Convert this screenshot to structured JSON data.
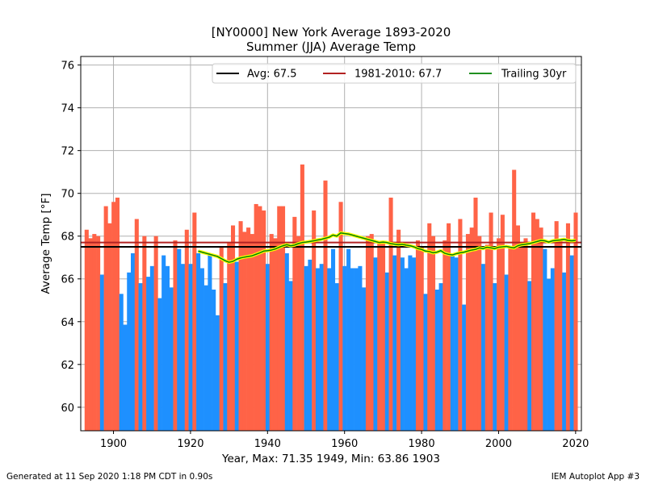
{
  "chart_data": {
    "type": "bar",
    "title": "[NY0000] New York Average 1893-2020",
    "subtitle": "Summer (JJA) Average Temp",
    "xlabel": "Year, Max: 71.35 1949, Min: 63.86 1903",
    "ylabel": "Average Temp [°F]",
    "xlim": [
      1891.5,
      2021.5
    ],
    "ylim": [
      58.9,
      76.4
    ],
    "xticks": [
      1900,
      1920,
      1940,
      1960,
      1980,
      2000,
      2020
    ],
    "yticks": [
      60,
      62,
      64,
      66,
      68,
      70,
      72,
      74,
      76
    ],
    "grid": true,
    "legend_position": "top-right",
    "above_color": "#ff6347",
    "below_color": "#1e90ff",
    "average": {
      "label": "Avg: 67.5",
      "value": 67.5,
      "color": "#000000"
    },
    "normal": {
      "label": "1981-2010: 67.7",
      "value": 67.7,
      "color": "#b22222"
    },
    "trailing": {
      "label": "Trailing 30yr",
      "color": "#008000",
      "halo": "#ffff00"
    },
    "years": [
      1893,
      1894,
      1895,
      1896,
      1897,
      1898,
      1899,
      1900,
      1901,
      1902,
      1903,
      1904,
      1905,
      1906,
      1907,
      1908,
      1909,
      1910,
      1911,
      1912,
      1913,
      1914,
      1915,
      1916,
      1917,
      1918,
      1919,
      1920,
      1921,
      1922,
      1923,
      1924,
      1925,
      1926,
      1927,
      1928,
      1929,
      1930,
      1931,
      1932,
      1933,
      1934,
      1935,
      1936,
      1937,
      1938,
      1939,
      1940,
      1941,
      1942,
      1943,
      1944,
      1945,
      1946,
      1947,
      1948,
      1949,
      1950,
      1951,
      1952,
      1953,
      1954,
      1955,
      1956,
      1957,
      1958,
      1959,
      1960,
      1961,
      1962,
      1963,
      1964,
      1965,
      1966,
      1967,
      1968,
      1969,
      1970,
      1971,
      1972,
      1973,
      1974,
      1975,
      1976,
      1977,
      1978,
      1979,
      1980,
      1981,
      1982,
      1983,
      1984,
      1985,
      1986,
      1987,
      1988,
      1989,
      1990,
      1991,
      1992,
      1993,
      1994,
      1995,
      1996,
      1997,
      1998,
      1999,
      2000,
      2001,
      2002,
      2003,
      2004,
      2005,
      2006,
      2007,
      2008,
      2009,
      2010,
      2011,
      2012,
      2013,
      2014,
      2015,
      2016,
      2017,
      2018,
      2019,
      2020
    ],
    "values": [
      68.3,
      67.9,
      68.1,
      68.0,
      66.2,
      69.4,
      68.6,
      69.6,
      69.8,
      65.3,
      63.86,
      66.3,
      67.2,
      68.8,
      65.8,
      68.0,
      66.1,
      66.6,
      68.0,
      65.1,
      67.1,
      66.6,
      65.6,
      67.8,
      67.4,
      66.7,
      68.3,
      66.7,
      69.1,
      67.2,
      66.5,
      65.7,
      67.1,
      65.5,
      64.3,
      67.5,
      65.8,
      67.7,
      68.5,
      66.8,
      68.7,
      68.2,
      68.4,
      68.1,
      69.5,
      69.4,
      69.2,
      66.7,
      68.1,
      67.9,
      69.4,
      69.4,
      67.2,
      65.9,
      68.9,
      68.0,
      71.35,
      66.6,
      66.9,
      69.2,
      66.5,
      66.7,
      70.6,
      66.5,
      67.4,
      65.8,
      69.6,
      66.6,
      67.4,
      66.5,
      66.5,
      66.6,
      65.6,
      68.0,
      68.1,
      67.0,
      67.7,
      67.7,
      66.3,
      69.8,
      67.1,
      68.3,
      67.0,
      66.5,
      67.1,
      67.0,
      67.8,
      67.5,
      65.3,
      68.6,
      68.0,
      65.5,
      65.8,
      67.8,
      68.6,
      67.1,
      67.0,
      68.8,
      64.8,
      68.1,
      68.4,
      69.8,
      68.0,
      66.7,
      67.6,
      69.1,
      65.8,
      67.9,
      69.0,
      66.2,
      67.5,
      71.1,
      68.5,
      67.7,
      67.9,
      65.9,
      69.1,
      68.8,
      68.4,
      67.4,
      66.0,
      66.5,
      68.7,
      67.8,
      66.3,
      68.6,
      67.1,
      69.1
    ],
    "trailing_start_year": 1922,
    "trailing_values": [
      67.3,
      67.25,
      67.2,
      67.15,
      67.1,
      67.05,
      66.95,
      66.85,
      66.78,
      66.82,
      66.92,
      66.98,
      67.02,
      67.05,
      67.08,
      67.15,
      67.22,
      67.3,
      67.32,
      67.35,
      67.4,
      67.48,
      67.55,
      67.6,
      67.55,
      67.58,
      67.65,
      67.7,
      67.72,
      67.75,
      67.78,
      67.82,
      67.85,
      67.9,
      67.95,
      68.05,
      68.0,
      68.15,
      68.12,
      68.1,
      68.05,
      68.0,
      67.95,
      67.9,
      67.85,
      67.8,
      67.75,
      67.7,
      67.72,
      67.7,
      67.65,
      67.62,
      67.6,
      67.62,
      67.58,
      67.55,
      67.5,
      67.42,
      67.38,
      67.3,
      67.28,
      67.22,
      67.25,
      67.32,
      67.2,
      67.15,
      67.12,
      67.18,
      67.22,
      67.25,
      67.3,
      67.35,
      67.38,
      67.45,
      67.42,
      67.48,
      67.45,
      67.42,
      67.48,
      67.5,
      67.52,
      67.48,
      67.45,
      67.55,
      67.6,
      67.62,
      67.65,
      67.7,
      67.75,
      67.8,
      67.78,
      67.72,
      67.78,
      67.8,
      67.82,
      67.85,
      67.8,
      67.78,
      67.8
    ]
  },
  "footer": {
    "generated": "Generated at 11 Sep 2020 1:18 PM CDT in 0.90s",
    "app": "IEM Autoplot App #3"
  }
}
